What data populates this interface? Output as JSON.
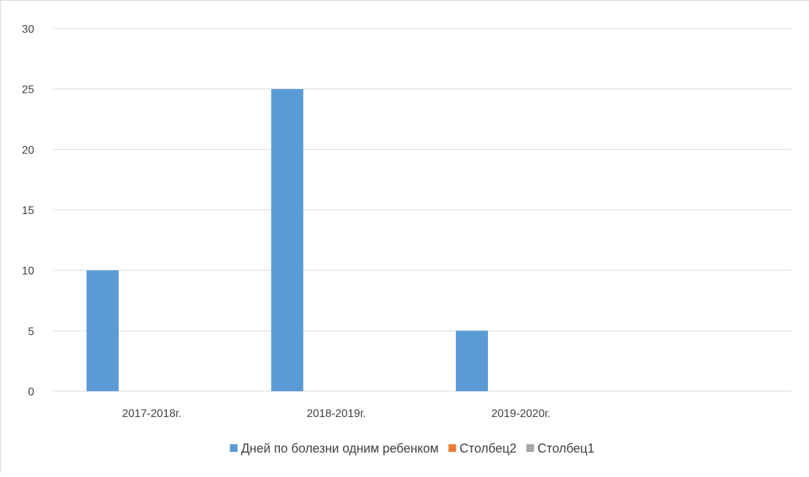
{
  "chart_data": {
    "type": "bar",
    "categories": [
      "2017-2018г.",
      "2018-2019г.",
      "2019-2020г.",
      ""
    ],
    "series": [
      {
        "name": "Дней по болезни одним ребенком",
        "values": [
          10,
          25,
          5,
          null
        ],
        "color": "#5b9bd5"
      },
      {
        "name": "Столбец2",
        "values": [
          null,
          null,
          null,
          null
        ],
        "color": "#ed7d31"
      },
      {
        "name": "Столбец1",
        "values": [
          null,
          null,
          null,
          null
        ],
        "color": "#a5a5a5"
      }
    ],
    "ylim": [
      0,
      30
    ],
    "yticks": [
      0,
      5,
      10,
      15,
      20,
      25,
      30
    ],
    "grid": true,
    "legend_position": "bottom",
    "gridline_color": "#d9d9d9"
  }
}
